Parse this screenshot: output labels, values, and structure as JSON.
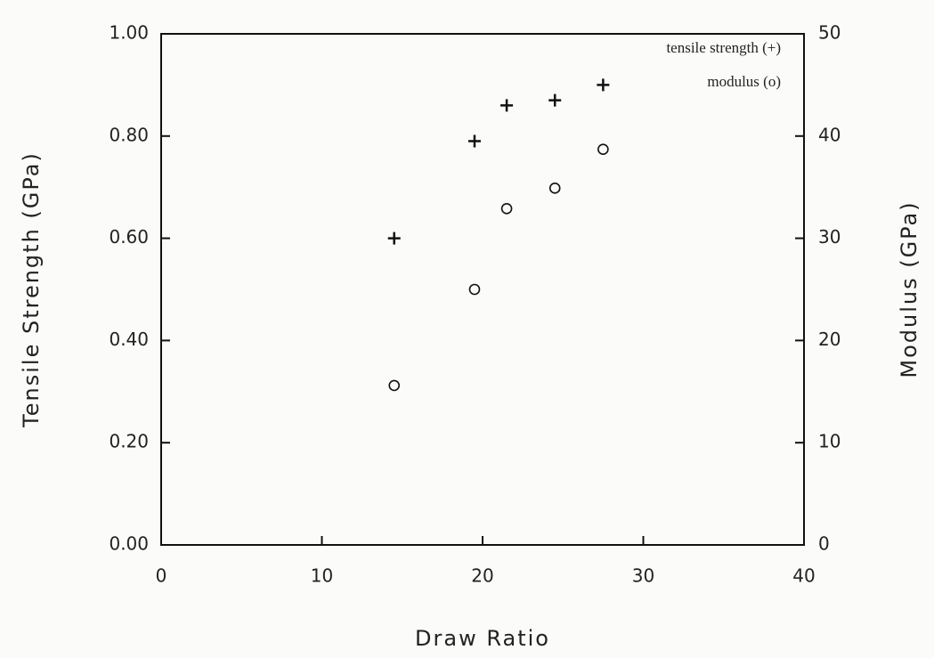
{
  "chart_data": {
    "type": "scatter",
    "x_label": "Draw Ratio",
    "y_label": "Tensile Strength (GPa)",
    "y2_label": "Modulus (GPa)",
    "xlim": [
      0,
      40
    ],
    "xticks": [
      0,
      10,
      20,
      30,
      40
    ],
    "ylim": [
      0,
      1
    ],
    "yticks": [
      {
        "value": 0,
        "label": "0.00"
      },
      {
        "value": 0.2,
        "label": "0.20"
      },
      {
        "value": 0.4,
        "label": "0.40"
      },
      {
        "value": 0.6,
        "label": "0.60"
      },
      {
        "value": 0.8,
        "label": "0.80"
      },
      {
        "value": 1,
        "label": "1.00"
      }
    ],
    "y2lim": [
      0,
      50
    ],
    "y2ticks": [
      0,
      10,
      20,
      30,
      40,
      50
    ],
    "grid": false,
    "legend": "top-right",
    "series": [
      {
        "name": "tensile strength (+)",
        "color": "#111111",
        "marker": "plus",
        "x": [
          14.5,
          19.5,
          21.5,
          24.5,
          27.5
        ],
        "values": [
          0.6,
          0.79,
          0.86,
          0.87,
          0.9
        ]
      },
      {
        "name": "modulus (o)",
        "color": "#111111",
        "marker": "circle",
        "axis": "y2",
        "x": [
          14.5,
          19.5,
          21.5,
          24.5,
          27.5
        ],
        "values": [
          15.6,
          25,
          32.9,
          34.9,
          38.7
        ]
      }
    ]
  }
}
